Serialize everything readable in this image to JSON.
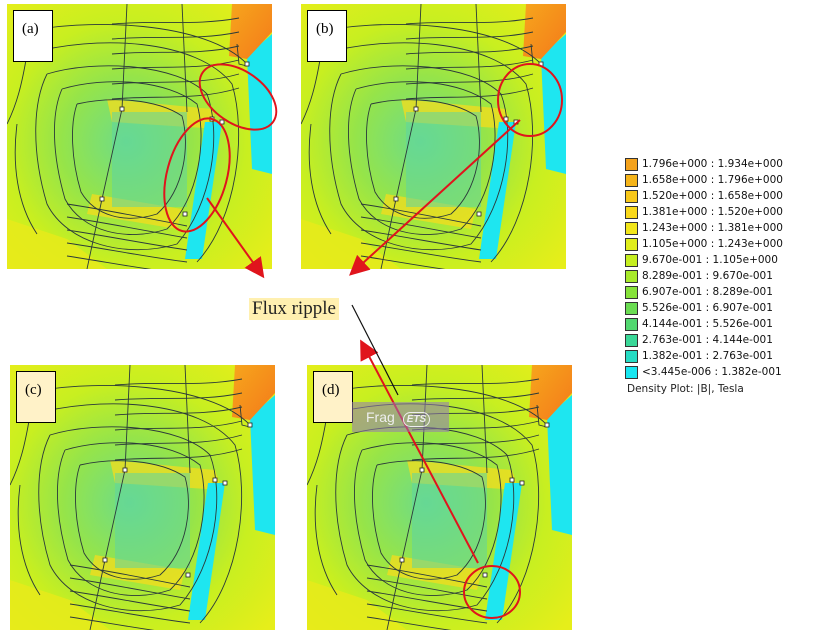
{
  "panels": [
    {
      "id": "a",
      "label": "(a)"
    },
    {
      "id": "b",
      "label": "(b)"
    },
    {
      "id": "c",
      "label": "(c)"
    },
    {
      "id": "d",
      "label": "(d)"
    }
  ],
  "annotation": {
    "text": "Flux ripple"
  },
  "watermark": {
    "text": "Frag",
    "badge": "ETS"
  },
  "legend": {
    "caption": "Density Plot: |B|, Tesla",
    "items": [
      {
        "range": "1.796e+000 : 1.934e+000",
        "color": "#f4a21c"
      },
      {
        "range": "1.658e+000 : 1.796e+000",
        "color": "#f6b51a"
      },
      {
        "range": "1.520e+000 : 1.658e+000",
        "color": "#f8c81a"
      },
      {
        "range": "1.381e+000 : 1.520e+000",
        "color": "#f9d81b"
      },
      {
        "range": "1.243e+000 : 1.381e+000",
        "color": "#f2e61a"
      },
      {
        "range": "1.105e+000 : 1.243e+000",
        "color": "#e0ee1c"
      },
      {
        "range": "9.670e-001 : 1.105e+000",
        "color": "#c6ef20"
      },
      {
        "range": "8.289e-001 : 9.670e-001",
        "color": "#a8ea2a"
      },
      {
        "range": "6.907e-001 : 8.289e-001",
        "color": "#86e23a"
      },
      {
        "range": "5.526e-001 : 6.907e-001",
        "color": "#6adc52"
      },
      {
        "range": "4.144e-001 : 5.526e-001",
        "color": "#52d870"
      },
      {
        "range": "2.763e-001 : 4.144e-001",
        "color": "#3ad898"
      },
      {
        "range": "1.382e-001 : 2.763e-001",
        "color": "#26dcc4"
      },
      {
        "range": "<3.445e-006 : 1.382e-001",
        "color": "#18e6f0"
      }
    ]
  }
}
